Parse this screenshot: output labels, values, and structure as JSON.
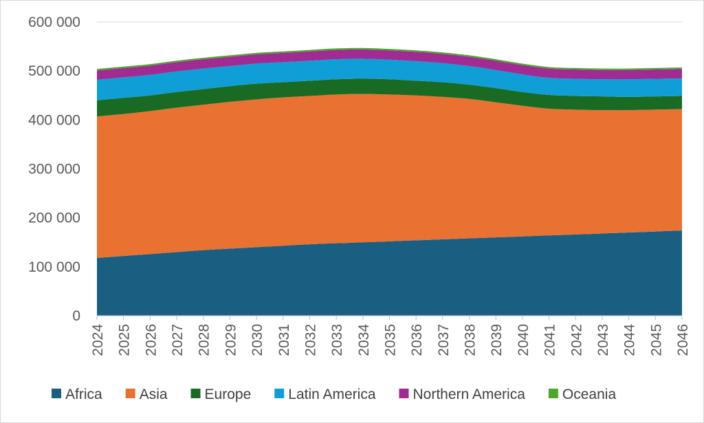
{
  "chart_data": {
    "type": "area",
    "stacked": true,
    "title": "",
    "xlabel": "",
    "ylabel": "",
    "ylim": [
      0,
      600000
    ],
    "y_ticks": [
      0,
      100000,
      200000,
      300000,
      400000,
      500000,
      600000
    ],
    "y_tick_labels": [
      "0",
      "100 000",
      "200 000",
      "300 000",
      "400 000",
      "500 000",
      "600 000"
    ],
    "grid": true,
    "legend_position": "bottom",
    "categories": [
      "2024",
      "2025",
      "2026",
      "2027",
      "2028",
      "2029",
      "2030",
      "2031",
      "2032",
      "2033",
      "2034",
      "2035",
      "2036",
      "2037",
      "2038",
      "2039",
      "2040",
      "2041",
      "2042",
      "2043",
      "2044",
      "2045",
      "2046"
    ],
    "series": [
      {
        "name": "Africa",
        "color": "#1a5f82",
        "values": [
          118000,
          122000,
          126000,
          130000,
          134000,
          137000,
          140000,
          143000,
          146000,
          148000,
          150000,
          152000,
          154000,
          156000,
          158000,
          160000,
          162000,
          164000,
          166000,
          168000,
          170000,
          172000,
          174000
        ]
      },
      {
        "name": "Asia",
        "color": "#e97132",
        "values": [
          289000,
          290000,
          292000,
          295000,
          297000,
          300000,
          302000,
          303000,
          303000,
          304000,
          303000,
          300000,
          296000,
          291000,
          285000,
          276000,
          267000,
          259000,
          255000,
          252000,
          250000,
          249000,
          248000
        ]
      },
      {
        "name": "Europe",
        "color": "#196b24",
        "values": [
          33000,
          33000,
          32000,
          32000,
          32000,
          32000,
          32000,
          31000,
          31000,
          31000,
          31000,
          31000,
          30000,
          30000,
          29000,
          29000,
          28000,
          28000,
          28000,
          28000,
          27000,
          27000,
          27000
        ]
      },
      {
        "name": "Latin America",
        "color": "#0f9ed5",
        "values": [
          42000,
          42000,
          42000,
          42000,
          42000,
          41000,
          41000,
          41000,
          41000,
          41000,
          41000,
          40000,
          40000,
          39000,
          38000,
          37000,
          36000,
          35000,
          35000,
          35000,
          36000,
          36000,
          36000
        ]
      },
      {
        "name": "Northern America",
        "color": "#a02b93",
        "values": [
          19000,
          19000,
          19000,
          19000,
          19000,
          19000,
          19000,
          19000,
          19000,
          19000,
          19000,
          19000,
          19000,
          19000,
          19000,
          19000,
          19000,
          19000,
          19000,
          19000,
          19000,
          19000,
          19000
        ]
      },
      {
        "name": "Oceania",
        "color": "#4ea72e",
        "values": [
          3000,
          3000,
          3000,
          3000,
          3000,
          3000,
          3000,
          3000,
          3000,
          3000,
          3000,
          3000,
          3000,
          3000,
          3000,
          3000,
          3000,
          3000,
          3000,
          3000,
          3000,
          3000,
          3000
        ]
      }
    ]
  }
}
